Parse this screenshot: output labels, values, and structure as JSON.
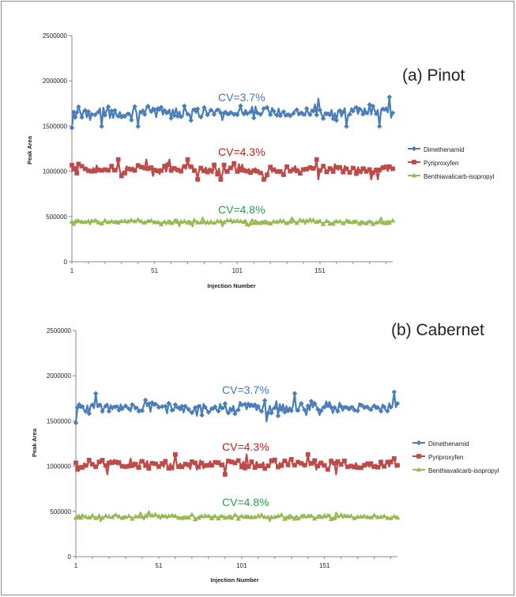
{
  "chart_data": [
    {
      "type": "line",
      "title": "(a) Pinot",
      "xlabel": "Injection Number",
      "ylabel": "Peak Area",
      "xlim": [
        1,
        195
      ],
      "ylim": [
        0,
        2500000
      ],
      "x_ticks": [
        "1",
        "51",
        "101",
        "151"
      ],
      "y_ticks": [
        "0",
        "500000",
        "1000000",
        "1500000",
        "2000000",
        "2500000"
      ],
      "legend_position": "right",
      "grid": false,
      "series": [
        {
          "name": "Dimethenamid",
          "color": "#4a7ebb",
          "marker": "diamond",
          "cv_label": "CV=3.7%",
          "mean": 1650000,
          "amplitude": 70000,
          "min": 1480000,
          "max": 1820000
        },
        {
          "name": "Pyriproxyfen",
          "color": "#be4b48",
          "marker": "square",
          "cv_label": "CV=4.3%",
          "mean": 1020000,
          "amplitude": 50000,
          "min": 900000,
          "max": 1140000
        },
        {
          "name": "Benthiavalicarb-isopropyl",
          "color": "#98b954",
          "marker": "triangle",
          "cv_label": "CV=4.8%",
          "mean": 440000,
          "amplitude": 22000,
          "min": 380000,
          "max": 500000
        }
      ]
    },
    {
      "type": "line",
      "title": "(b) Cabernet",
      "xlabel": "Injection Number",
      "ylabel": "Peak Area",
      "xlim": [
        1,
        195
      ],
      "ylim": [
        0,
        2500000
      ],
      "x_ticks": [
        "1",
        "51",
        "101",
        "151"
      ],
      "y_ticks": [
        "0",
        "500000",
        "1000000",
        "1500000",
        "2000000",
        "2500000"
      ],
      "legend_position": "right",
      "grid": false,
      "series": [
        {
          "name": "Dimethenamid",
          "color": "#4a7ebb",
          "marker": "diamond",
          "cv_label": "CV=3.7%",
          "mean": 1650000,
          "amplitude": 70000,
          "min": 1480000,
          "max": 1820000
        },
        {
          "name": "Pyriproxyfen",
          "color": "#be4b48",
          "marker": "square",
          "cv_label": "CV=4.3%",
          "mean": 1020000,
          "amplitude": 50000,
          "min": 900000,
          "max": 1140000
        },
        {
          "name": "Benthiavalicarb-isopropyl",
          "color": "#98b954",
          "marker": "triangle",
          "cv_label": "CV=4.8%",
          "mean": 440000,
          "amplitude": 22000,
          "min": 380000,
          "max": 500000
        }
      ]
    }
  ]
}
